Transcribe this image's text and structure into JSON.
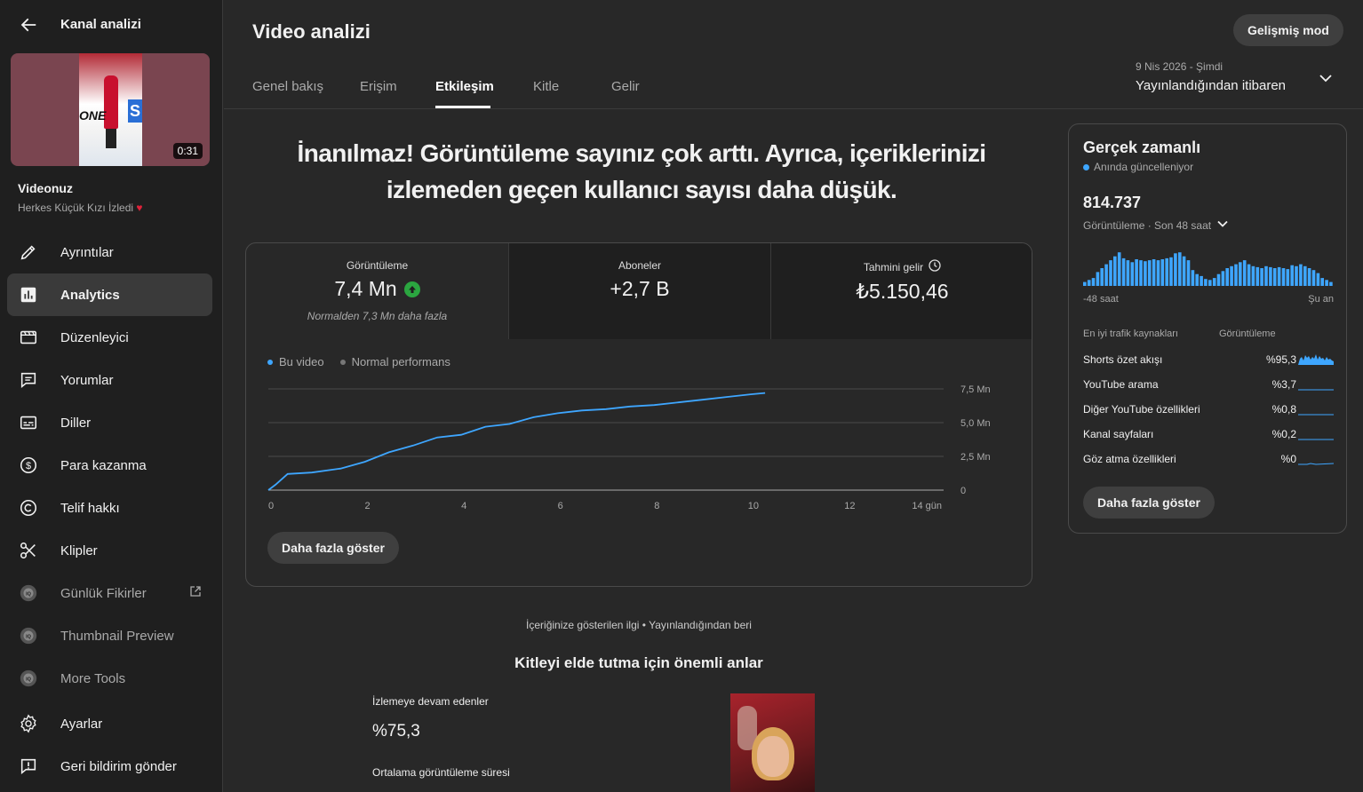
{
  "sidebar": {
    "header_title": "Kanal analizi",
    "thumbnail": {
      "duration": "0:31",
      "overlay_text": "ONE",
      "overlay_letter": "S"
    },
    "video_title": "Videonuz",
    "video_subtitle": "Herkes Küçük Kızı İzledi",
    "video_subtitle_emoji": "♥",
    "items": [
      {
        "label": "Ayrıntılar",
        "icon": "pencil-icon"
      },
      {
        "label": "Analytics",
        "icon": "analytics-icon",
        "active": true
      },
      {
        "label": "Düzenleyici",
        "icon": "editor-icon"
      },
      {
        "label": "Yorumlar",
        "icon": "comments-icon"
      },
      {
        "label": "Diller",
        "icon": "subtitles-icon"
      },
      {
        "label": "Para kazanma",
        "icon": "dollar-icon"
      },
      {
        "label": "Telif hakkı",
        "icon": "copyright-icon"
      },
      {
        "label": "Klipler",
        "icon": "scissors-icon"
      },
      {
        "label": "Günlük Fikirler",
        "icon": "extension-icon"
      },
      {
        "label": "Thumbnail Preview",
        "icon": "extension-icon"
      },
      {
        "label": "More Tools",
        "icon": "extension-icon"
      },
      {
        "label": "Ayarlar",
        "icon": "gear-icon"
      },
      {
        "label": "Geri bildirim gönder",
        "icon": "feedback-icon"
      }
    ]
  },
  "header": {
    "title": "Video analizi",
    "advanced_mode": "Gelişmiş mod",
    "tabs": [
      "Genel bakış",
      "Erişim",
      "Etkileşim",
      "Kitle",
      "Gelir"
    ],
    "active_tab": "Etkileşim",
    "date_range_small": "9 Nis 2026 - Şimdi",
    "date_range_main": "Yayınlandığından itibaren"
  },
  "headline": {
    "line1": "İnanılmaz! Görüntüleme sayınız çok arttı. Ayrıca, içeriklerinizi",
    "line2": "izlemeden geçen kullanıcı sayısı daha düşük."
  },
  "metrics": [
    {
      "label": "Görüntüleme",
      "value": "7,4 Mn",
      "note": "Normalden 7,3 Mn daha fazla"
    },
    {
      "label": "Aboneler",
      "value": "+2,7 B"
    },
    {
      "label": "Tahmini gelir",
      "value": "₺5.150,46"
    }
  ],
  "chart_data": {
    "type": "line",
    "legend": [
      "Bu video",
      "Normal performans"
    ],
    "x_ticks": [
      "0",
      "2",
      "4",
      "6",
      "8",
      "10",
      "12",
      "14 gün"
    ],
    "y_ticks": [
      "7,5 Mn",
      "5,0 Mn",
      "2,5 Mn",
      "0"
    ],
    "xlim": [
      0,
      14
    ],
    "ylim": [
      0,
      7.5
    ],
    "colors": {
      "this_video": "#3ea6ff",
      "typical": "#606060"
    },
    "series": [
      {
        "name": "Bu video",
        "x": [
          0,
          0.15,
          0.4,
          0.9,
          1.5,
          2,
          2.5,
          3,
          3.5,
          4,
          4.5,
          5,
          5.5,
          6,
          6.5,
          7,
          7.5,
          8,
          8.5,
          9,
          9.5,
          10,
          10.3
        ],
        "y": [
          0,
          0.4,
          1.2,
          1.3,
          1.6,
          2.1,
          2.8,
          3.3,
          3.9,
          4.1,
          4.7,
          4.9,
          5.4,
          5.7,
          5.9,
          6.0,
          6.2,
          6.3,
          6.5,
          6.7,
          6.9,
          7.1,
          7.2
        ]
      }
    ]
  },
  "chart_more_button": "Daha fazla göster",
  "below": {
    "caption": "İçeriğinize gösterilen ilgi • Yayınlandığından beri",
    "title": "Kitleyi elde tutma için önemli anlar",
    "retained_label": "İzlemeye devam edenler",
    "retained_value": "%75,3",
    "avg_label": "Ortalama görüntüleme süresi"
  },
  "realtime": {
    "title": "Gerçek zamanlı",
    "live_text": "Anında güncelleniyor",
    "views": "814.737",
    "views_sub": "Görüntüleme · Son 48 saat",
    "axis_left": "-48 saat",
    "axis_right": "Şu an",
    "bars": [
      4,
      6,
      8,
      14,
      18,
      22,
      26,
      30,
      34,
      28,
      26,
      24,
      27,
      26,
      25,
      26,
      27,
      26,
      27,
      28,
      29,
      33,
      34,
      30,
      26,
      16,
      12,
      10,
      7,
      6,
      8,
      12,
      15,
      18,
      20,
      22,
      24,
      26,
      22,
      20,
      19,
      18,
      20,
      19,
      18,
      19,
      18,
      17,
      21,
      20,
      22,
      20,
      18,
      16,
      13,
      8,
      6,
      4
    ],
    "sources_header": "En iyi trafik kaynakları",
    "sources_header_views": "Görüntüleme",
    "sources": [
      {
        "name": "Shorts özet akışı",
        "pct": "%95,3"
      },
      {
        "name": "YouTube arama",
        "pct": "%3,7"
      },
      {
        "name": "Diğer YouTube özellikleri",
        "pct": "%0,8"
      },
      {
        "name": "Kanal sayfaları",
        "pct": "%0,2"
      },
      {
        "name": "Göz atma özellikleri",
        "pct": "%0"
      }
    ],
    "more_button": "Daha fazla göster"
  }
}
